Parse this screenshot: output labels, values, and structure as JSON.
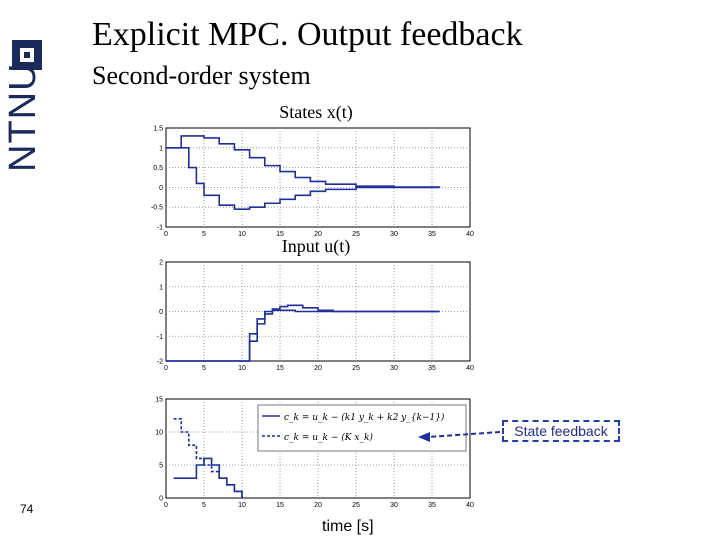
{
  "slide": {
    "title": "Explicit MPC. Output feedback",
    "subtitle": "Second-order system",
    "slide_number": "74",
    "xlabel": "time [s]",
    "callout": "State feedback",
    "logo_text": "NTNU"
  },
  "chart_data": [
    {
      "type": "line",
      "title": "States x(t)",
      "xlim": [
        0,
        40
      ],
      "ylim": [
        -1,
        1.5
      ],
      "xticks": [
        "0",
        "5",
        "10",
        "15",
        "20",
        "25",
        "30",
        "35",
        "40"
      ],
      "yticks": [
        "1.5",
        "1",
        "0.5",
        "0",
        "-0.5",
        "-1"
      ],
      "grid": true,
      "series": [
        {
          "x": [
            0,
            2,
            5,
            7,
            9,
            11,
            13,
            15,
            17,
            19,
            21,
            25,
            30,
            36
          ],
          "y": [
            1.0,
            1.3,
            1.25,
            1.1,
            0.95,
            0.75,
            0.55,
            0.4,
            0.25,
            0.15,
            0.08,
            0.03,
            0.01,
            0.0
          ]
        },
        {
          "x": [
            0,
            2,
            3,
            4,
            5,
            7,
            9,
            11,
            13,
            15,
            17,
            19,
            21,
            25,
            30,
            36
          ],
          "y": [
            1.0,
            1.0,
            0.5,
            0.1,
            -0.2,
            -0.45,
            -0.55,
            -0.5,
            -0.4,
            -0.3,
            -0.2,
            -0.1,
            -0.05,
            0.0,
            0.0,
            0.0
          ]
        }
      ]
    },
    {
      "type": "line",
      "title": "Input u(t)",
      "xlim": [
        0,
        40
      ],
      "ylim": [
        -2,
        2
      ],
      "xticks": [
        "0",
        "5",
        "10",
        "15",
        "20",
        "25",
        "30",
        "35",
        "40"
      ],
      "yticks": [
        "2",
        "1",
        "0",
        "-1",
        "-2"
      ],
      "grid": true,
      "series": [
        {
          "x": [
            0,
            10,
            11,
            12,
            13,
            14,
            15,
            16,
            18,
            20,
            22,
            25,
            36
          ],
          "y": [
            -2,
            -2,
            -1.2,
            -0.5,
            -0.1,
            0.1,
            0.2,
            0.25,
            0.15,
            0.05,
            0.0,
            0.0,
            0.0
          ]
        },
        {
          "x": [
            0,
            10,
            11,
            12,
            13,
            14,
            15,
            17,
            20,
            36
          ],
          "y": [
            -2,
            -2,
            -0.9,
            -0.3,
            0.0,
            0.05,
            0.05,
            0.0,
            0.0,
            0.0
          ]
        }
      ]
    },
    {
      "type": "line",
      "title": "",
      "xlim": [
        0,
        40
      ],
      "ylim": [
        0,
        15
      ],
      "xticks": [
        "0",
        "5",
        "10",
        "15",
        "20",
        "25",
        "30",
        "35",
        "40"
      ],
      "yticks": [
        "15",
        "10",
        "5",
        "0"
      ],
      "grid": true,
      "legend": [
        "c_k = u_k − (k1 y_k + k2 y_{k−1})",
        "c_k = u_k − (K x_k)"
      ],
      "series": [
        {
          "x": [
            1,
            3,
            4,
            5,
            6,
            7,
            8,
            9,
            10
          ],
          "y": [
            3,
            3,
            5,
            6,
            5,
            3,
            2,
            1,
            0
          ]
        },
        {
          "x": [
            1,
            2,
            3,
            4,
            5,
            6,
            7,
            8,
            9,
            10
          ],
          "y": [
            12,
            10,
            8,
            6,
            5,
            4,
            3,
            2,
            1,
            0
          ]
        }
      ]
    }
  ]
}
